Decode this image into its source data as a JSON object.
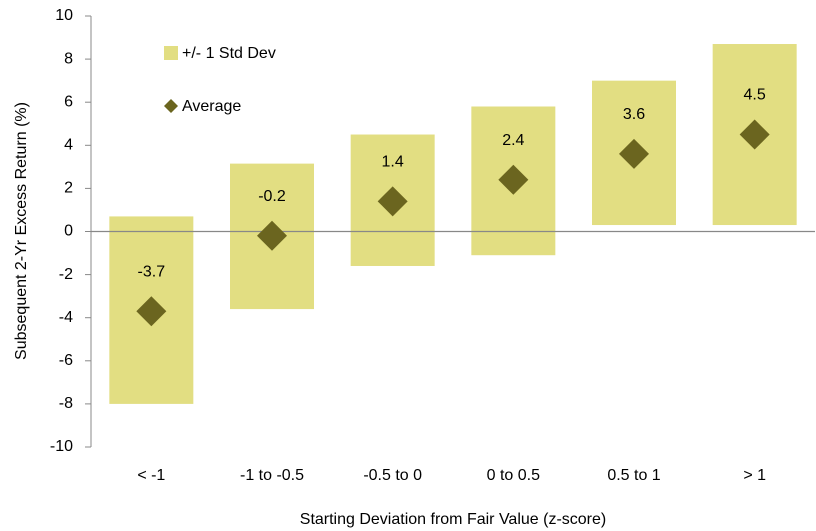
{
  "chart_data": {
    "type": "range-bar",
    "categories": [
      "< -1",
      "-1 to -0.5",
      "-0.5 to 0",
      "0 to 0.5",
      "0.5 to 1",
      "> 1"
    ],
    "series": [
      {
        "name": "+/- 1 Std Dev",
        "color": "#e2de82",
        "low": [
          -8.0,
          -3.6,
          -1.6,
          -1.1,
          0.3,
          0.3
        ],
        "high": [
          0.7,
          3.15,
          4.5,
          5.8,
          7.0,
          8.7
        ]
      },
      {
        "name": "Average",
        "color": "#6b651f",
        "values": [
          -3.7,
          -0.2,
          1.4,
          2.4,
          3.6,
          4.5
        ]
      }
    ],
    "xlabel": "Starting Deviation from Fair Value (z-score)",
    "ylabel": "Subsequent  2-Yr Excess Return (%)",
    "ylim": [
      -10,
      10
    ],
    "yticks": [
      -10,
      -8,
      -6,
      -4,
      -2,
      0,
      2,
      4,
      6,
      8,
      10
    ],
    "legend": "top-left"
  }
}
